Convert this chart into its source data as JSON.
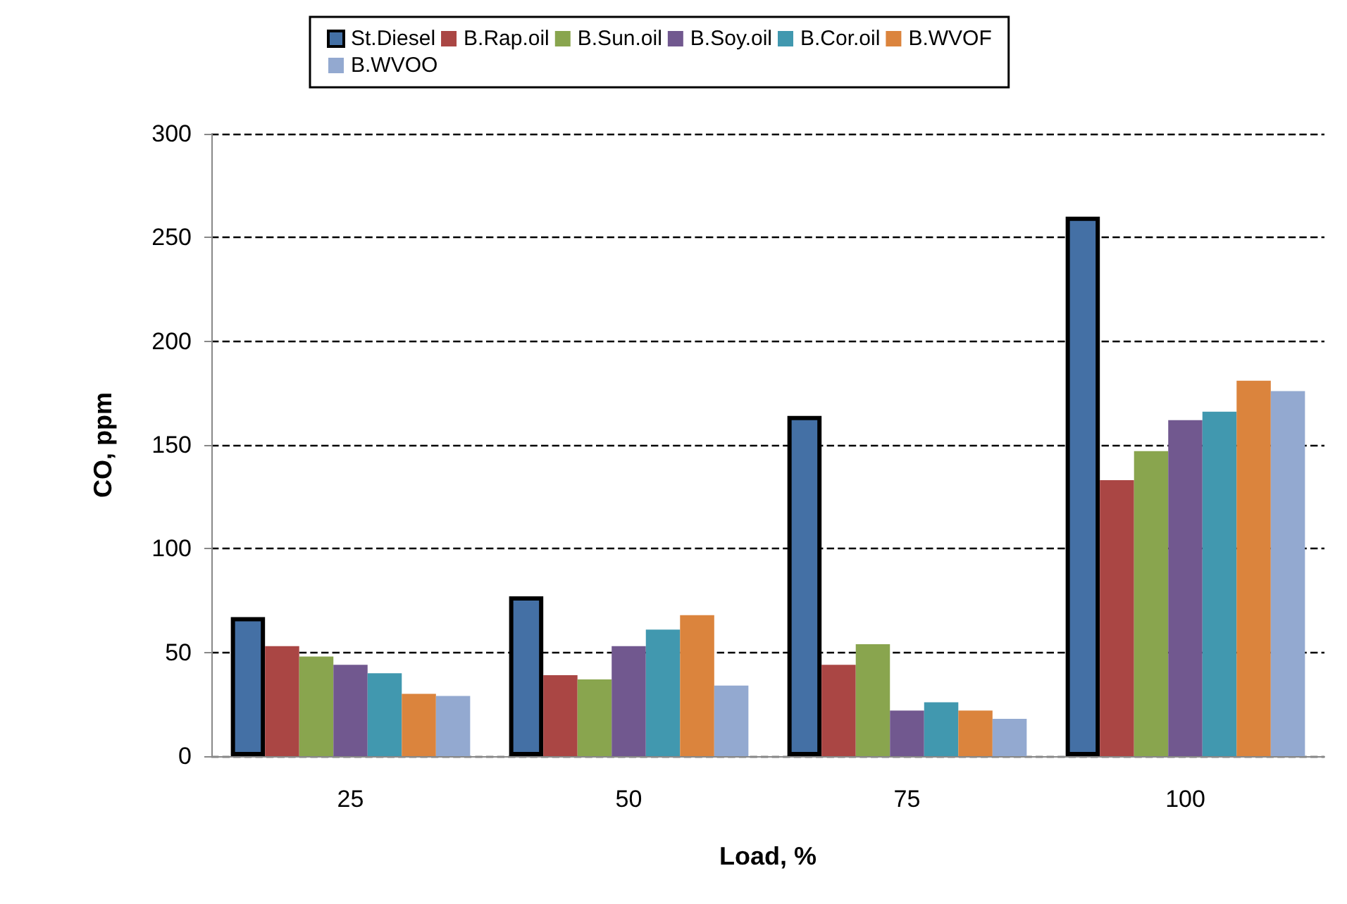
{
  "chart_data": {
    "type": "bar",
    "xlabel": "Load, %",
    "ylabel": "CO, ppm",
    "categories": [
      "25",
      "50",
      "75",
      "100"
    ],
    "series": [
      {
        "name": "St.Diesel",
        "color": "#4470a5",
        "values": [
          67,
          77,
          164,
          260
        ]
      },
      {
        "name": "B.Rap.oil",
        "color": "#aa4644",
        "values": [
          53,
          39,
          44,
          133
        ]
      },
      {
        "name": "B.Sun.oil",
        "color": "#89a54e",
        "values": [
          48,
          37,
          54,
          147
        ]
      },
      {
        "name": "B.Soy.oil",
        "color": "#71588f",
        "values": [
          44,
          53,
          22,
          162
        ]
      },
      {
        "name": "B.Cor.oil",
        "color": "#4198af",
        "values": [
          40,
          61,
          26,
          166
        ]
      },
      {
        "name": "B.WVOF",
        "color": "#db843d",
        "values": [
          30,
          68,
          22,
          181
        ]
      },
      {
        "name": "B.WVOO",
        "color": "#93a9d0",
        "values": [
          29,
          34,
          18,
          176
        ]
      }
    ],
    "ylim": [
      0,
      300
    ],
    "yticks": [
      0,
      50,
      100,
      150,
      200,
      250,
      300
    ],
    "grid": "y",
    "legend": "top"
  }
}
